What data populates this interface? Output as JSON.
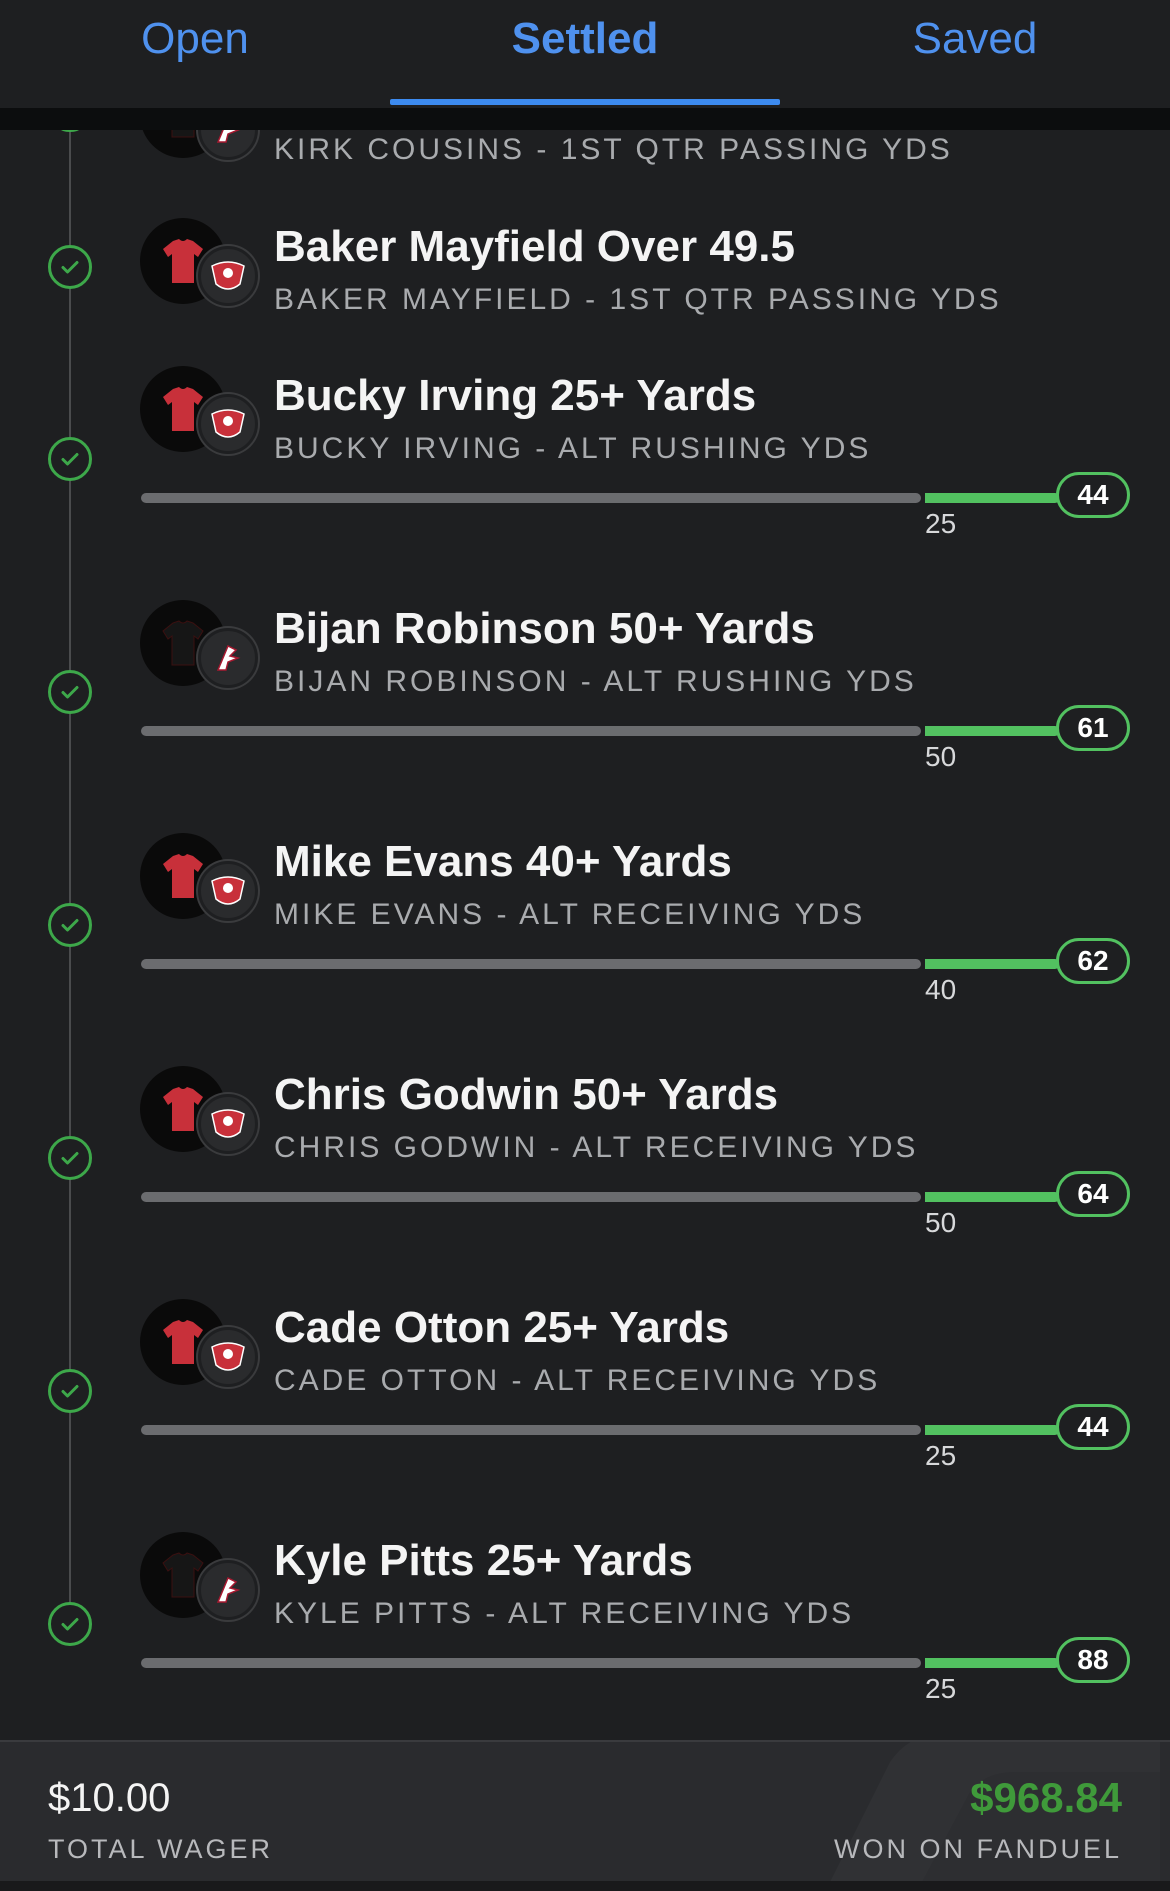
{
  "tabs": [
    {
      "label": "Open",
      "active": false
    },
    {
      "label": "Settled",
      "active": true
    },
    {
      "label": "Saved",
      "active": false
    }
  ],
  "legs": [
    {
      "title": "",
      "subtitle": "KIRK COUSINS - 1ST QTR PASSING YDS",
      "team": "falcons",
      "result": "won"
    },
    {
      "title": "Baker Mayfield Over 49.5",
      "subtitle": "BAKER MAYFIELD - 1ST QTR PASSING YDS",
      "team": "buccaneers",
      "result": "won"
    },
    {
      "title": "Bucky Irving 25+ Yards",
      "subtitle": "BUCKY IRVING - ALT RUSHING YDS",
      "team": "buccaneers",
      "result": "won",
      "line": "25",
      "actual": "44"
    },
    {
      "title": "Bijan Robinson 50+ Yards",
      "subtitle": "BIJAN ROBINSON - ALT RUSHING YDS",
      "team": "falcons",
      "result": "won",
      "line": "50",
      "actual": "61"
    },
    {
      "title": "Mike Evans 40+ Yards",
      "subtitle": "MIKE EVANS - ALT RECEIVING YDS",
      "team": "buccaneers",
      "result": "won",
      "line": "40",
      "actual": "62"
    },
    {
      "title": "Chris Godwin 50+ Yards",
      "subtitle": "CHRIS GODWIN - ALT RECEIVING YDS",
      "team": "buccaneers",
      "result": "won",
      "line": "50",
      "actual": "64"
    },
    {
      "title": "Cade Otton 25+ Yards",
      "subtitle": "CADE OTTON - ALT RECEIVING YDS",
      "team": "buccaneers",
      "result": "won",
      "line": "25",
      "actual": "44"
    },
    {
      "title": "Kyle Pitts 25+ Yards",
      "subtitle": "KYLE PITTS - ALT RECEIVING YDS",
      "team": "falcons",
      "result": "won",
      "line": "25",
      "actual": "88"
    }
  ],
  "footer": {
    "wager_amount": "$10.00",
    "wager_label": "TOTAL WAGER",
    "won_amount": "$968.84",
    "won_label": "WON ON FANDUEL"
  },
  "colors": {
    "background": "#1e1f21",
    "tab_blue": "#4f91ee",
    "win_green": "#52c160",
    "payout_green": "#3f9a3a",
    "track_gray": "#6b6c6f"
  },
  "icons": {
    "check": "check-circle-icon",
    "buccaneers_logo": "buccaneers-logo-icon",
    "falcons_logo": "falcons-logo-icon",
    "jersey": "jersey-icon"
  }
}
